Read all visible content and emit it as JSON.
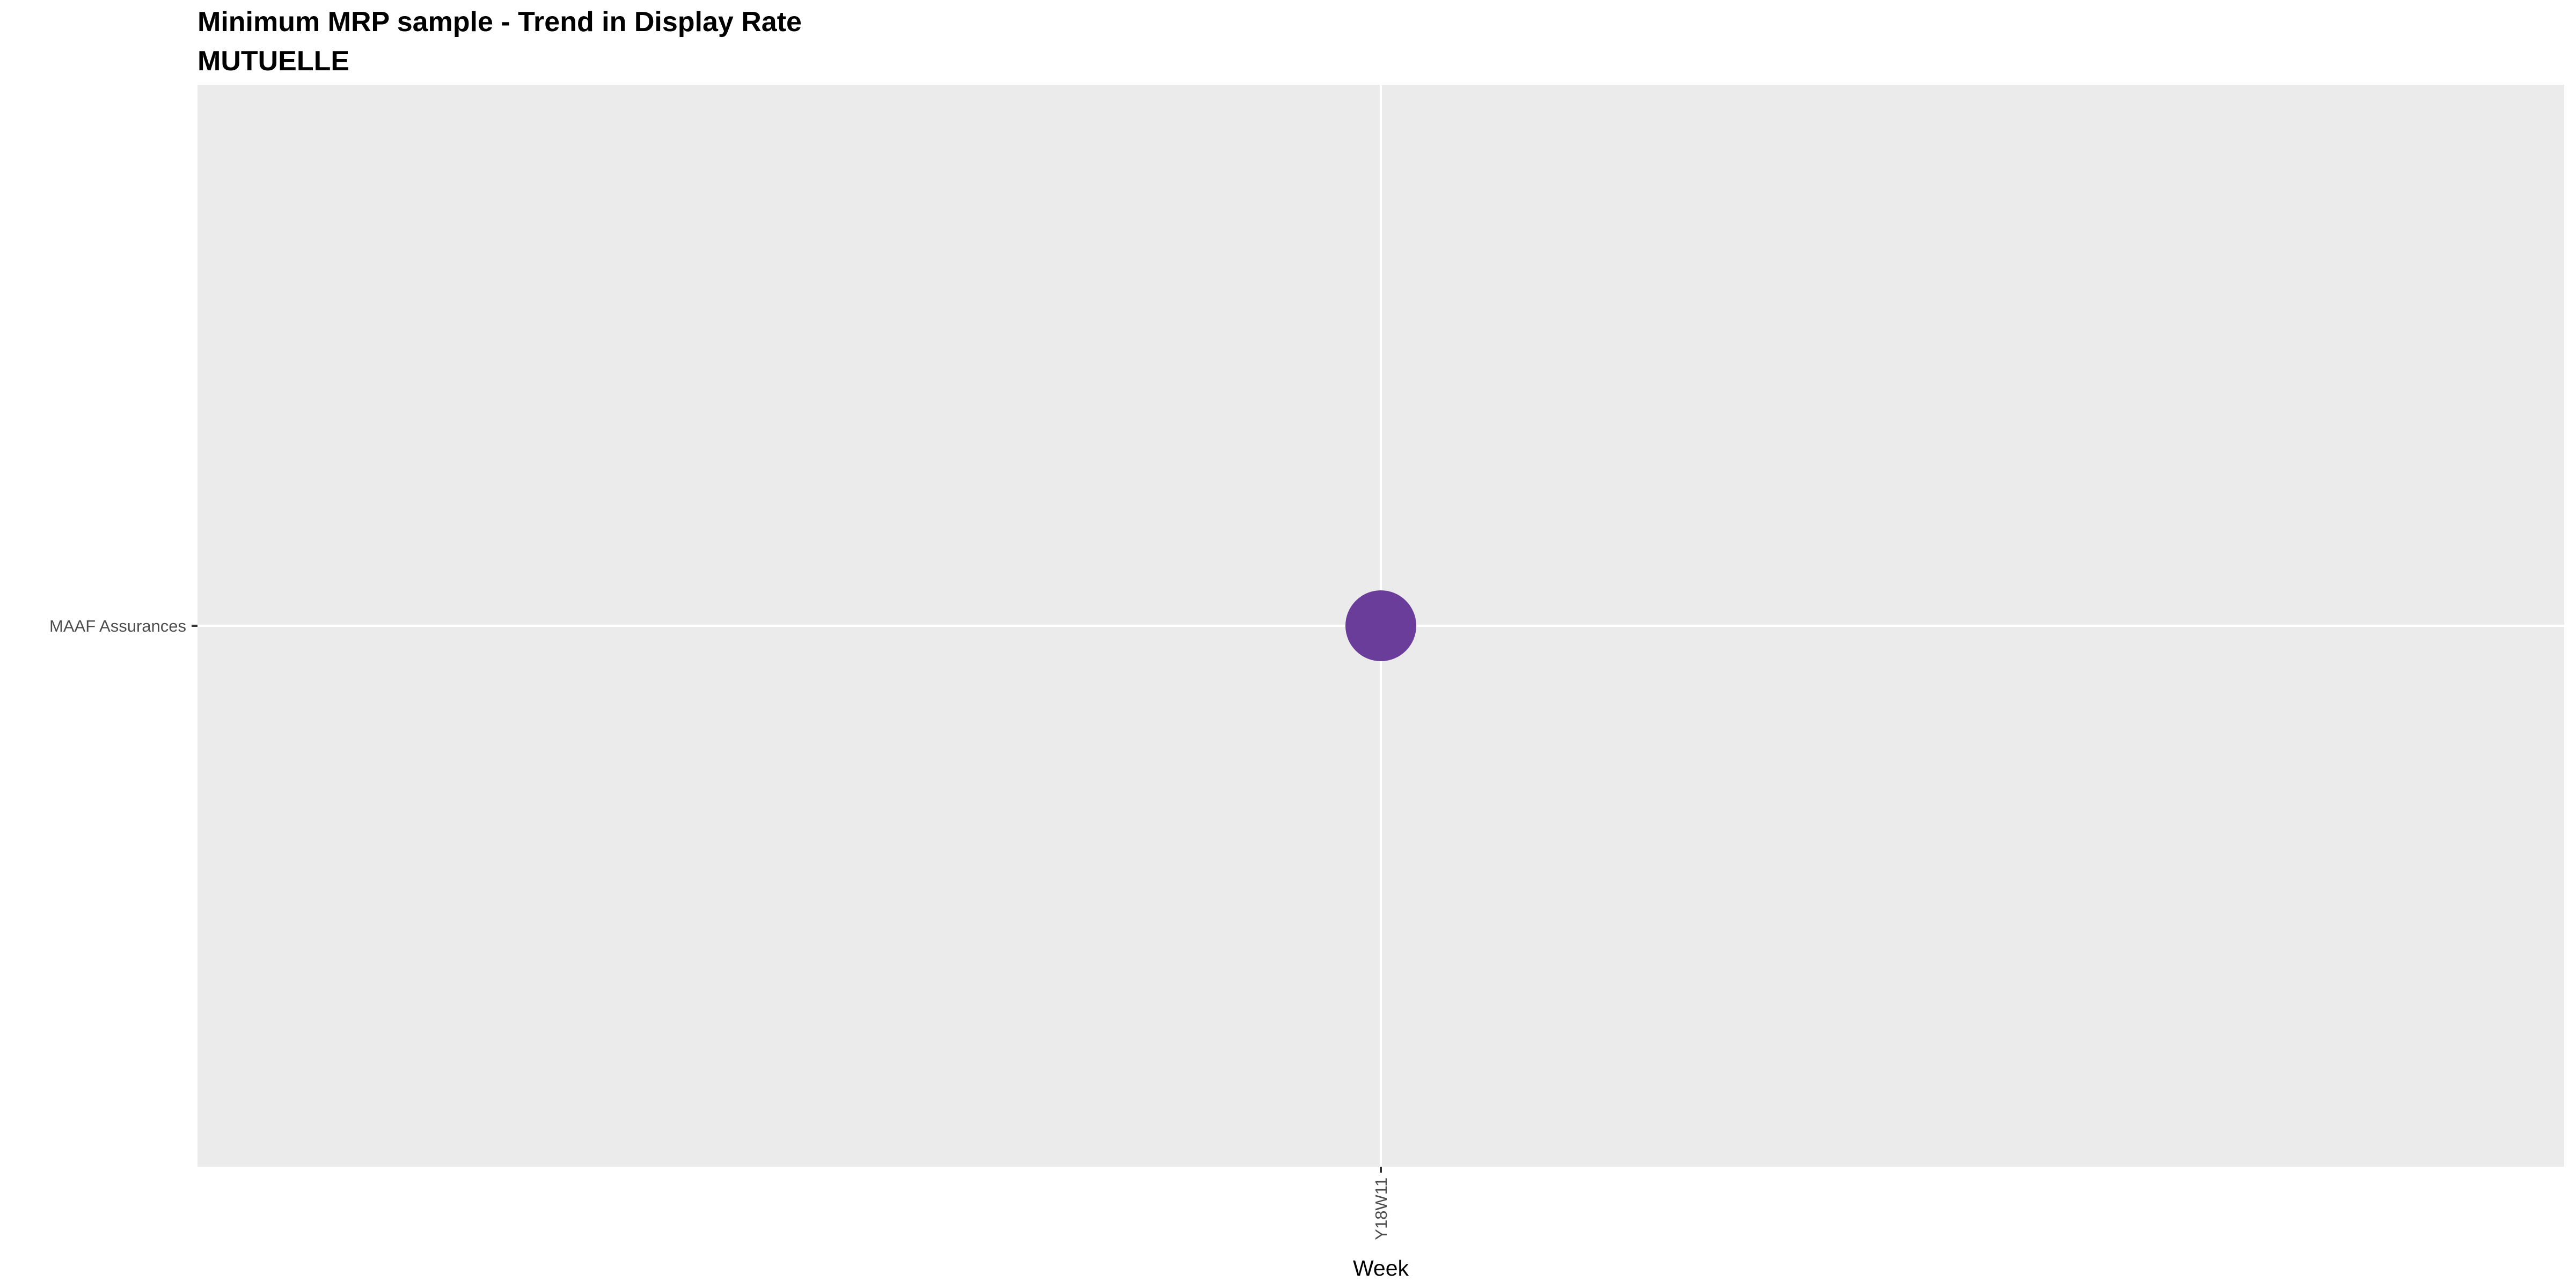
{
  "chart_data": {
    "type": "scatter",
    "title": "Minimum MRP sample - Trend in Display Rate",
    "subtitle": "MUTUELLE",
    "xlabel": "Week",
    "ylabel": "",
    "x_categories": [
      "Y18W11"
    ],
    "y_categories": [
      "MAAF Assurances"
    ],
    "points": [
      {
        "x": "Y18W11",
        "y": "MAAF Assurances",
        "color": "#6a3d9a"
      }
    ],
    "grid": true,
    "legend": "none",
    "colors": {
      "panel_background": "#ebebeb",
      "grid_line": "#ffffff",
      "point": "#6a3d9a"
    }
  }
}
